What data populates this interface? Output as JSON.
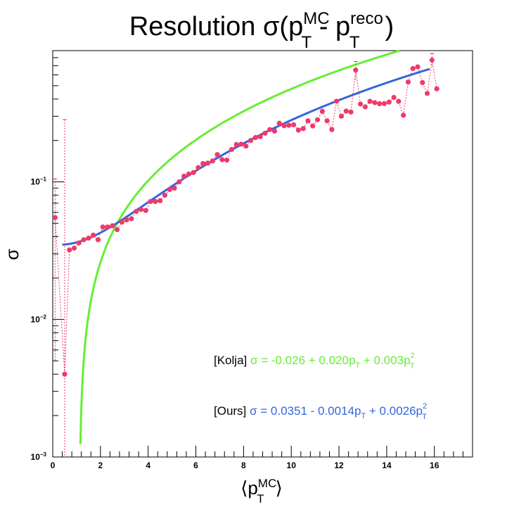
{
  "chart_data": {
    "type": "scatter",
    "title": {
      "prefix": "Resolution σ(p",
      "mc_sup": "MC",
      "mc_sub": "T",
      "mid": " - p",
      "reco_sup": "reco",
      "reco_sub": "T",
      "suffix": ")"
    },
    "xlabel": {
      "open": "⟨p",
      "sup": "MC",
      "sub": "T",
      "close": "⟩"
    },
    "ylabel": "σ",
    "xlim": [
      0,
      17.6
    ],
    "ylim": [
      0.001,
      0.9
    ],
    "yscale": "log",
    "grid": false,
    "x_ticks": [
      0,
      2,
      4,
      6,
      8,
      10,
      12,
      14,
      16
    ],
    "y_tick_labels": [
      {
        "value": 0.1,
        "base": "10",
        "exp": "−1"
      },
      {
        "value": 0.01,
        "base": "10",
        "exp": "−2"
      },
      {
        "value": 0.001,
        "base": "10",
        "exp": "−3"
      }
    ],
    "series": [
      {
        "type": "points",
        "color": "#ee3a6a",
        "x": [
          0.1,
          0.5,
          0.7,
          0.9,
          1.1,
          1.3,
          1.5,
          1.7,
          1.9,
          2.1,
          2.3,
          2.5,
          2.7,
          2.9,
          3.1,
          3.3,
          3.5,
          3.7,
          3.9,
          4.1,
          4.3,
          4.5,
          4.7,
          4.9,
          5.1,
          5.3,
          5.5,
          5.7,
          5.9,
          6.1,
          6.3,
          6.5,
          6.7,
          6.9,
          7.1,
          7.3,
          7.5,
          7.7,
          7.9,
          8.1,
          8.3,
          8.5,
          8.7,
          8.9,
          9.1,
          9.3,
          9.5,
          9.7,
          9.9,
          10.1,
          10.3,
          10.5,
          10.7,
          10.9,
          11.1,
          11.3,
          11.5,
          11.7,
          11.9,
          12.1,
          12.3,
          12.5,
          12.7,
          12.9,
          13.1,
          13.3,
          13.5,
          13.7,
          13.9,
          14.1,
          14.3,
          14.5,
          14.7,
          14.9,
          15.1,
          15.3,
          15.5,
          15.7,
          15.9,
          16.1
        ],
        "y": [
          0.055,
          0.004,
          0.032,
          0.033,
          0.036,
          0.038,
          0.039,
          0.041,
          0.038,
          0.047,
          0.047,
          0.048,
          0.045,
          0.051,
          0.053,
          0.054,
          0.061,
          0.063,
          0.062,
          0.072,
          0.072,
          0.073,
          0.08,
          0.088,
          0.09,
          0.1,
          0.11,
          0.114,
          0.117,
          0.127,
          0.136,
          0.137,
          0.142,
          0.158,
          0.145,
          0.144,
          0.172,
          0.187,
          0.188,
          0.182,
          0.2,
          0.21,
          0.213,
          0.226,
          0.24,
          0.234,
          0.267,
          0.256,
          0.258,
          0.26,
          0.238,
          0.244,
          0.278,
          0.255,
          0.283,
          0.326,
          0.278,
          0.24,
          0.386,
          0.3,
          0.327,
          0.322,
          0.65,
          0.368,
          0.351,
          0.385,
          0.377,
          0.37,
          0.371,
          0.38,
          0.411,
          0.385,
          0.305,
          0.532,
          0.667,
          0.686,
          0.527,
          0.44,
          0.768,
          0.475
        ],
        "yerr": [
          0.05,
          0.28,
          0,
          0,
          0,
          0,
          0,
          0,
          0,
          0,
          0,
          0,
          0,
          0,
          0,
          0,
          0,
          0,
          0,
          0,
          0,
          0,
          0,
          0,
          0,
          0,
          0,
          0,
          0,
          0,
          0,
          0,
          0,
          0,
          0,
          0,
          0,
          0,
          0,
          0,
          0,
          0,
          0,
          0,
          0,
          0,
          0,
          0,
          0,
          0,
          0,
          0,
          0,
          0,
          0,
          0,
          0,
          0,
          0,
          0,
          0,
          0,
          0.1,
          0,
          0,
          0,
          0,
          0,
          0,
          0,
          0,
          0,
          0,
          0,
          0,
          0,
          0,
          0,
          0.09,
          0
        ]
      },
      {
        "type": "fit",
        "color": "#66ee33",
        "coefficients": [
          -0.026,
          0.02,
          0.003
        ],
        "x_range": [
          1.1,
          15.5
        ]
      },
      {
        "type": "fit",
        "color": "#3366dd",
        "coefficients": [
          0.0351,
          -0.0014,
          0.0026
        ],
        "x_range": [
          0.4,
          15.8
        ]
      }
    ],
    "legend": [
      {
        "label": "[Kolja]",
        "color": "#66ee33",
        "formula": {
          "a": "σ = -0.026 + 0.020p",
          "sub1": "T",
          "b": " + 0.003p",
          "sup2": "2",
          "sub2": "T"
        }
      },
      {
        "label": "[Ours]",
        "color": "#3366dd",
        "formula": {
          "a": "σ = 0.0351 - 0.0014p",
          "sub1": "T",
          "b": " + 0.0026p",
          "sup2": "2",
          "sub2": "T"
        }
      }
    ]
  }
}
